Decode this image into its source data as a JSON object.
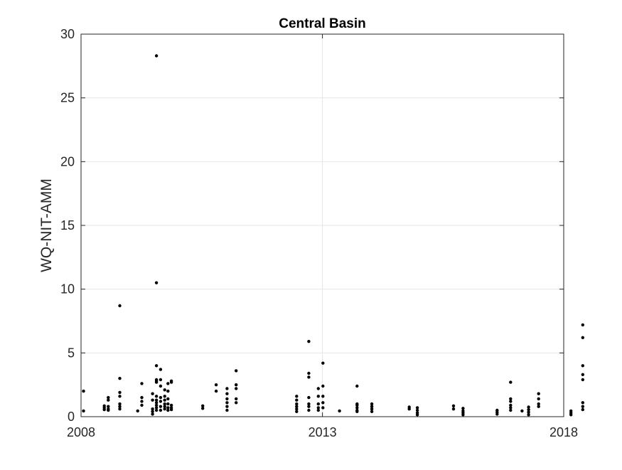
{
  "chart_data": {
    "type": "scatter",
    "title": "Central Basin",
    "xlabel": "",
    "ylabel": "WQ-NIT-AMM",
    "x_axis_type": "date",
    "xlim": [
      "2008-01-01",
      "2018-01-01"
    ],
    "ylim": [
      0,
      30
    ],
    "x_ticks": [
      "2008-01-01",
      "2013-01-01",
      "2018-01-01"
    ],
    "x_tick_labels": [
      "2008",
      "2013",
      "2018"
    ],
    "y_ticks": [
      0,
      5,
      10,
      15,
      20,
      25,
      30
    ],
    "y_tick_labels": [
      "0",
      "5",
      "10",
      "15",
      "20",
      "25",
      "30"
    ],
    "grid": true,
    "box": true,
    "marker_color": "#000000",
    "grid_color": "#e6e6e6",
    "axis_color": "#262626",
    "points": [
      {
        "x": "2008-01-20",
        "y": 2.0
      },
      {
        "x": "2008-01-20",
        "y": 0.45
      },
      {
        "x": "2008-06-25",
        "y": 0.85
      },
      {
        "x": "2008-06-25",
        "y": 0.7
      },
      {
        "x": "2008-06-25",
        "y": 0.55
      },
      {
        "x": "2008-07-25",
        "y": 1.5
      },
      {
        "x": "2008-07-25",
        "y": 1.3
      },
      {
        "x": "2008-07-25",
        "y": 0.8
      },
      {
        "x": "2008-07-25",
        "y": 0.6
      },
      {
        "x": "2008-07-25",
        "y": 0.5
      },
      {
        "x": "2008-10-20",
        "y": 8.7
      },
      {
        "x": "2008-10-20",
        "y": 3.0
      },
      {
        "x": "2008-10-20",
        "y": 1.9
      },
      {
        "x": "2008-10-20",
        "y": 1.6
      },
      {
        "x": "2008-10-20",
        "y": 1.0
      },
      {
        "x": "2008-10-20",
        "y": 0.8
      },
      {
        "x": "2008-10-20",
        "y": 0.6
      },
      {
        "x": "2009-03-05",
        "y": 0.45
      },
      {
        "x": "2009-04-05",
        "y": 2.6
      },
      {
        "x": "2009-04-05",
        "y": 1.5
      },
      {
        "x": "2009-04-05",
        "y": 1.2
      },
      {
        "x": "2009-04-05",
        "y": 0.9
      },
      {
        "x": "2009-06-25",
        "y": 1.8
      },
      {
        "x": "2009-06-25",
        "y": 1.3
      },
      {
        "x": "2009-06-25",
        "y": 0.6
      },
      {
        "x": "2009-06-25",
        "y": 0.4
      },
      {
        "x": "2009-06-25",
        "y": 0.2
      },
      {
        "x": "2009-07-25",
        "y": 28.3
      },
      {
        "x": "2009-07-25",
        "y": 10.5
      },
      {
        "x": "2009-07-25",
        "y": 4.0
      },
      {
        "x": "2009-07-25",
        "y": 2.9
      },
      {
        "x": "2009-07-25",
        "y": 2.8
      },
      {
        "x": "2009-07-25",
        "y": 2.7
      },
      {
        "x": "2009-07-25",
        "y": 1.6
      },
      {
        "x": "2009-07-25",
        "y": 1.3
      },
      {
        "x": "2009-07-25",
        "y": 1.1
      },
      {
        "x": "2009-07-25",
        "y": 0.9
      },
      {
        "x": "2009-07-25",
        "y": 0.7
      },
      {
        "x": "2009-07-25",
        "y": 0.5
      },
      {
        "x": "2009-08-25",
        "y": 3.7
      },
      {
        "x": "2009-08-25",
        "y": 2.9
      },
      {
        "x": "2009-08-25",
        "y": 2.4
      },
      {
        "x": "2009-08-25",
        "y": 1.5
      },
      {
        "x": "2009-08-25",
        "y": 1.2
      },
      {
        "x": "2009-08-25",
        "y": 0.8
      },
      {
        "x": "2009-08-25",
        "y": 0.5
      },
      {
        "x": "2009-09-25",
        "y": 2.1
      },
      {
        "x": "2009-09-25",
        "y": 1.6
      },
      {
        "x": "2009-09-25",
        "y": 1.3
      },
      {
        "x": "2009-09-25",
        "y": 1.0
      },
      {
        "x": "2009-09-25",
        "y": 0.8
      },
      {
        "x": "2009-09-25",
        "y": 0.6
      },
      {
        "x": "2009-10-20",
        "y": 2.6
      },
      {
        "x": "2009-10-20",
        "y": 2.0
      },
      {
        "x": "2009-10-20",
        "y": 1.4
      },
      {
        "x": "2009-10-20",
        "y": 1.0
      },
      {
        "x": "2009-10-20",
        "y": 0.7
      },
      {
        "x": "2009-10-20",
        "y": 0.5
      },
      {
        "x": "2009-11-15",
        "y": 2.8
      },
      {
        "x": "2009-11-15",
        "y": 2.7
      },
      {
        "x": "2009-11-15",
        "y": 0.9
      },
      {
        "x": "2009-11-15",
        "y": 0.7
      },
      {
        "x": "2009-11-15",
        "y": 0.55
      },
      {
        "x": "2010-07-10",
        "y": 0.85
      },
      {
        "x": "2010-07-10",
        "y": 0.65
      },
      {
        "x": "2010-10-20",
        "y": 2.5
      },
      {
        "x": "2010-10-20",
        "y": 2.0
      },
      {
        "x": "2011-01-10",
        "y": 2.2
      },
      {
        "x": "2011-01-10",
        "y": 1.8
      },
      {
        "x": "2011-01-10",
        "y": 1.4
      },
      {
        "x": "2011-01-10",
        "y": 1.1
      },
      {
        "x": "2011-01-10",
        "y": 0.8
      },
      {
        "x": "2011-01-10",
        "y": 0.5
      },
      {
        "x": "2011-03-20",
        "y": 3.6
      },
      {
        "x": "2011-03-20",
        "y": 2.5
      },
      {
        "x": "2011-03-20",
        "y": 2.2
      },
      {
        "x": "2011-03-20",
        "y": 1.4
      },
      {
        "x": "2011-03-20",
        "y": 1.1
      },
      {
        "x": "2012-06-20",
        "y": 1.6
      },
      {
        "x": "2012-06-20",
        "y": 1.3
      },
      {
        "x": "2012-06-20",
        "y": 1.0
      },
      {
        "x": "2012-06-20",
        "y": 0.8
      },
      {
        "x": "2012-06-20",
        "y": 0.6
      },
      {
        "x": "2012-06-20",
        "y": 0.4
      },
      {
        "x": "2012-09-20",
        "y": 5.9
      },
      {
        "x": "2012-09-20",
        "y": 3.4
      },
      {
        "x": "2012-09-20",
        "y": 3.1
      },
      {
        "x": "2012-09-20",
        "y": 1.5
      },
      {
        "x": "2012-09-20",
        "y": 1.0
      },
      {
        "x": "2012-09-20",
        "y": 0.8
      },
      {
        "x": "2012-09-20",
        "y": 0.5
      },
      {
        "x": "2012-12-01",
        "y": 2.2
      },
      {
        "x": "2012-12-01",
        "y": 1.6
      },
      {
        "x": "2012-12-01",
        "y": 1.0
      },
      {
        "x": "2012-12-01",
        "y": 0.7
      },
      {
        "x": "2012-12-01",
        "y": 0.5
      },
      {
        "x": "2013-01-05",
        "y": 4.2
      },
      {
        "x": "2013-01-05",
        "y": 2.4
      },
      {
        "x": "2013-01-05",
        "y": 1.6
      },
      {
        "x": "2013-01-05",
        "y": 1.1
      },
      {
        "x": "2013-01-05",
        "y": 0.7
      },
      {
        "x": "2013-05-10",
        "y": 0.45
      },
      {
        "x": "2013-09-20",
        "y": 2.4
      },
      {
        "x": "2013-09-20",
        "y": 1.0
      },
      {
        "x": "2013-09-20",
        "y": 0.9
      },
      {
        "x": "2013-09-20",
        "y": 0.7
      },
      {
        "x": "2013-09-20",
        "y": 0.5
      },
      {
        "x": "2013-09-20",
        "y": 0.4
      },
      {
        "x": "2014-01-10",
        "y": 1.0
      },
      {
        "x": "2014-01-10",
        "y": 0.8
      },
      {
        "x": "2014-01-10",
        "y": 0.6
      },
      {
        "x": "2014-01-10",
        "y": 0.4
      },
      {
        "x": "2014-10-20",
        "y": 0.75
      },
      {
        "x": "2014-10-20",
        "y": 0.6
      },
      {
        "x": "2014-12-20",
        "y": 0.7
      },
      {
        "x": "2014-12-20",
        "y": 0.5
      },
      {
        "x": "2014-12-20",
        "y": 0.3
      },
      {
        "x": "2014-12-20",
        "y": 0.15
      },
      {
        "x": "2015-09-20",
        "y": 0.85
      },
      {
        "x": "2015-09-20",
        "y": 0.6
      },
      {
        "x": "2015-12-01",
        "y": 0.65
      },
      {
        "x": "2015-12-01",
        "y": 0.45
      },
      {
        "x": "2015-12-01",
        "y": 0.3
      },
      {
        "x": "2015-12-01",
        "y": 0.15
      },
      {
        "x": "2016-08-15",
        "y": 0.5
      },
      {
        "x": "2016-08-15",
        "y": 0.35
      },
      {
        "x": "2016-08-15",
        "y": 0.2
      },
      {
        "x": "2016-11-25",
        "y": 2.7
      },
      {
        "x": "2016-11-25",
        "y": 1.4
      },
      {
        "x": "2016-11-25",
        "y": 1.2
      },
      {
        "x": "2016-11-25",
        "y": 0.9
      },
      {
        "x": "2016-11-25",
        "y": 0.7
      },
      {
        "x": "2016-11-25",
        "y": 0.5
      },
      {
        "x": "2017-02-20",
        "y": 0.45
      },
      {
        "x": "2017-04-10",
        "y": 0.75
      },
      {
        "x": "2017-04-10",
        "y": 0.55
      },
      {
        "x": "2017-04-10",
        "y": 0.35
      },
      {
        "x": "2017-04-10",
        "y": 0.15
      },
      {
        "x": "2017-06-25",
        "y": 1.8
      },
      {
        "x": "2017-06-25",
        "y": 1.4
      },
      {
        "x": "2017-06-25",
        "y": 1.0
      },
      {
        "x": "2017-06-25",
        "y": 0.8
      },
      {
        "x": "2018-02-25",
        "y": 0.45
      },
      {
        "x": "2018-02-25",
        "y": 0.3
      },
      {
        "x": "2018-02-25",
        "y": 0.15
      },
      {
        "x": "2018-05-25",
        "y": 7.2
      },
      {
        "x": "2018-05-25",
        "y": 6.2
      },
      {
        "x": "2018-05-25",
        "y": 4.0
      },
      {
        "x": "2018-05-25",
        "y": 3.3
      },
      {
        "x": "2018-05-25",
        "y": 2.9
      },
      {
        "x": "2018-05-25",
        "y": 1.1
      },
      {
        "x": "2018-05-25",
        "y": 0.8
      },
      {
        "x": "2018-05-25",
        "y": 0.55
      }
    ]
  }
}
